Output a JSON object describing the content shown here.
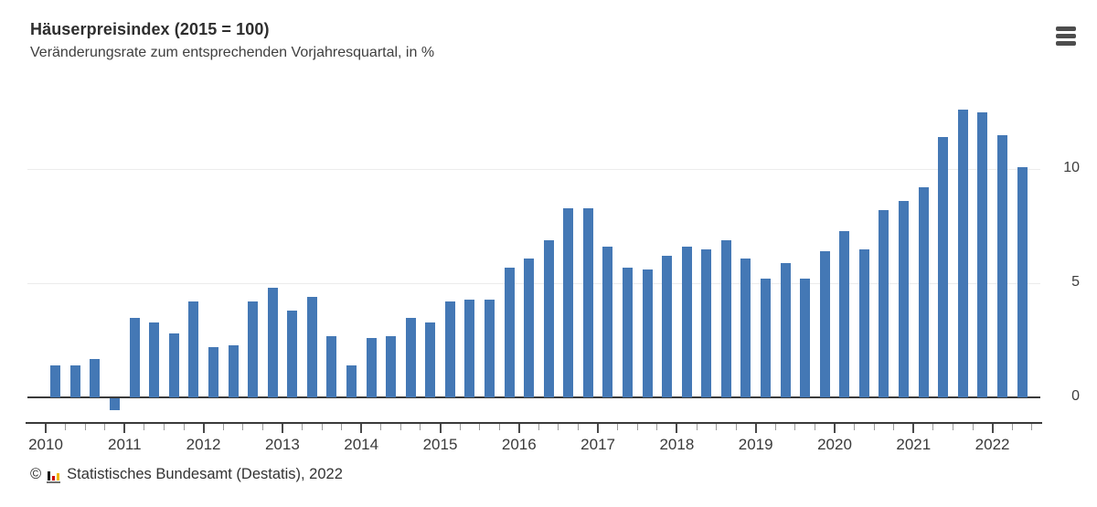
{
  "header": {
    "title": "Häuserpreisindex (2015 = 100)",
    "subtitle": "Veränderungsrate zum entsprechenden Vorjahresquartal, in %"
  },
  "menu": {
    "icon": "hamburger-icon",
    "color": "#4d4d4d"
  },
  "chart_data": {
    "type": "bar",
    "title": "Häuserpreisindex (2015 = 100)",
    "subtitle": "Veränderungsrate zum entsprechenden Vorjahresquartal, in %",
    "unit": "%",
    "bar_color": "#4478b5",
    "grid": "horizontal gridlines at y-ticks, dark zero line",
    "legend": "none",
    "yticks": [
      0,
      5,
      10
    ],
    "ylim": [
      -1,
      13.5
    ],
    "year_ticks": [
      "2010",
      "2011",
      "2012",
      "2013",
      "2014",
      "2015",
      "2016",
      "2017",
      "2018",
      "2019",
      "2020",
      "2021",
      "2022"
    ],
    "categories": [
      "2010 Q1",
      "2010 Q2",
      "2010 Q3",
      "2010 Q4",
      "2011 Q1",
      "2011 Q2",
      "2011 Q3",
      "2011 Q4",
      "2012 Q1",
      "2012 Q2",
      "2012 Q3",
      "2012 Q4",
      "2013 Q1",
      "2013 Q2",
      "2013 Q3",
      "2013 Q4",
      "2014 Q1",
      "2014 Q2",
      "2014 Q3",
      "2014 Q4",
      "2015 Q1",
      "2015 Q2",
      "2015 Q3",
      "2015 Q4",
      "2016 Q1",
      "2016 Q2",
      "2016 Q3",
      "2016 Q4",
      "2017 Q1",
      "2017 Q2",
      "2017 Q3",
      "2017 Q4",
      "2018 Q1",
      "2018 Q2",
      "2018 Q3",
      "2018 Q4",
      "2019 Q1",
      "2019 Q2",
      "2019 Q3",
      "2019 Q4",
      "2020 Q1",
      "2020 Q2",
      "2020 Q3",
      "2020 Q4",
      "2021 Q1",
      "2021 Q2",
      "2021 Q3",
      "2021 Q4",
      "2022 Q1",
      "2022 Q2"
    ],
    "values": [
      1.4,
      1.4,
      1.7,
      -0.5,
      3.5,
      3.3,
      2.8,
      4.2,
      2.2,
      2.3,
      4.2,
      4.8,
      3.8,
      4.4,
      2.7,
      1.4,
      2.6,
      2.7,
      3.5,
      3.3,
      4.2,
      4.3,
      4.3,
      5.7,
      6.1,
      6.9,
      8.3,
      8.3,
      6.6,
      5.7,
      5.6,
      6.2,
      6.6,
      6.5,
      6.9,
      6.1,
      5.2,
      5.9,
      5.2,
      6.4,
      7.3,
      6.5,
      8.2,
      8.6,
      9.2,
      11.4,
      12.6,
      12.5,
      11.5,
      10.1
    ]
  },
  "footer": {
    "copyright": "©",
    "source": "Statistisches Bundesamt (Destatis), 2022",
    "logo": {
      "name": "destatis-logo",
      "bar_colors": [
        "#1a1a1a",
        "#cc0605",
        "#f2b705"
      ],
      "base_color": "#707070"
    }
  }
}
